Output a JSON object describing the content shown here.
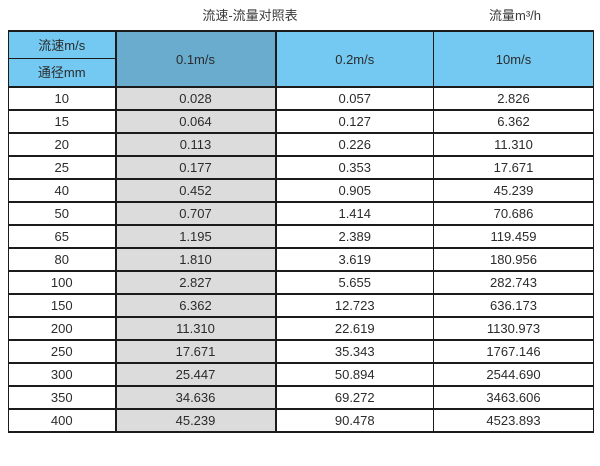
{
  "page": {
    "title_left": "流速-流量对照表",
    "title_right": "流量m³/h"
  },
  "table": {
    "corner_top": "流速m/s",
    "corner_bottom": "通径mm",
    "velocity_columns": [
      "0.1m/s",
      "0.2m/s",
      "10m/s"
    ],
    "rows": [
      {
        "diameter": "10",
        "values": [
          "0.028",
          "0.057",
          "2.826"
        ]
      },
      {
        "diameter": "15",
        "values": [
          "0.064",
          "0.127",
          "6.362"
        ]
      },
      {
        "diameter": "20",
        "values": [
          "0.113",
          "0.226",
          "11.310"
        ]
      },
      {
        "diameter": "25",
        "values": [
          "0.177",
          "0.353",
          "17.671"
        ]
      },
      {
        "diameter": "40",
        "values": [
          "0.452",
          "0.905",
          "45.239"
        ]
      },
      {
        "diameter": "50",
        "values": [
          "0.707",
          "1.414",
          "70.686"
        ]
      },
      {
        "diameter": "65",
        "values": [
          "1.195",
          "2.389",
          "119.459"
        ]
      },
      {
        "diameter": "80",
        "values": [
          "1.810",
          "3.619",
          "180.956"
        ]
      },
      {
        "diameter": "100",
        "values": [
          "2.827",
          "5.655",
          "282.743"
        ]
      },
      {
        "diameter": "150",
        "values": [
          "6.362",
          "12.723",
          "636.173"
        ]
      },
      {
        "diameter": "200",
        "values": [
          "11.310",
          "22.619",
          "1130.973"
        ]
      },
      {
        "diameter": "250",
        "values": [
          "17.671",
          "35.343",
          "1767.146"
        ]
      },
      {
        "diameter": "300",
        "values": [
          "25.447",
          "50.894",
          "2544.690"
        ]
      },
      {
        "diameter": "350",
        "values": [
          "34.636",
          "69.272",
          "3463.606"
        ]
      },
      {
        "diameter": "400",
        "values": [
          "45.239",
          "90.478",
          "4523.893"
        ]
      }
    ]
  },
  "colors": {
    "header_light_blue": "#73C9F1",
    "header_dark_blue": "#6AACCE",
    "gray_column": "#DCDCDC",
    "border": "#1B1B1B",
    "text": "#2B2B2B"
  },
  "chart_data": {
    "type": "table",
    "title": "流速-流量对照表",
    "unit_label": "流量m³/h",
    "row_header_label": "通径mm",
    "column_header_label": "流速m/s",
    "columns": [
      "通径mm",
      "0.1m/s",
      "0.2m/s",
      "10m/s"
    ],
    "diameters_mm": [
      10,
      15,
      20,
      25,
      40,
      50,
      65,
      80,
      100,
      150,
      200,
      250,
      300,
      350,
      400
    ],
    "series": [
      {
        "name": "0.1m/s",
        "values": [
          0.028,
          0.064,
          0.113,
          0.177,
          0.452,
          0.707,
          1.195,
          1.81,
          2.827,
          6.362,
          11.31,
          17.671,
          25.447,
          34.636,
          45.239
        ]
      },
      {
        "name": "0.2m/s",
        "values": [
          0.057,
          0.127,
          0.226,
          0.353,
          0.905,
          1.414,
          2.389,
          3.619,
          5.655,
          12.723,
          22.619,
          35.343,
          50.894,
          69.272,
          90.478
        ]
      },
      {
        "name": "10m/s",
        "values": [
          2.826,
          6.362,
          11.31,
          17.671,
          45.239,
          70.686,
          119.459,
          180.956,
          282.743,
          636.173,
          1130.973,
          1767.146,
          2544.69,
          3463.606,
          4523.893
        ]
      }
    ]
  }
}
